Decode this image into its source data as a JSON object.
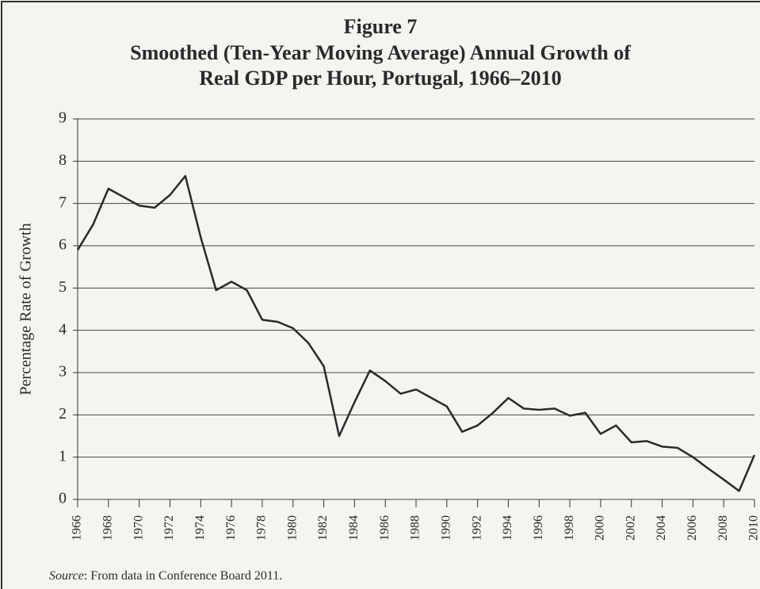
{
  "chart_data": {
    "type": "line",
    "figure_label": "Figure 7",
    "title": [
      "Smoothed (Ten-Year Moving Average) Annual Growth of",
      "Real GDP per Hour, Portugal, 1966–2010"
    ],
    "y_label": "Percentage Rate of Growth",
    "source": {
      "label": "Source",
      "text": ": From data in Conference Board 2011."
    },
    "x": [
      1966,
      1967,
      1968,
      1969,
      1970,
      1971,
      1972,
      1973,
      1974,
      1975,
      1976,
      1977,
      1978,
      1979,
      1980,
      1981,
      1982,
      1983,
      1984,
      1985,
      1986,
      1987,
      1988,
      1989,
      1990,
      1991,
      1992,
      1993,
      1994,
      1995,
      1996,
      1997,
      1998,
      1999,
      2000,
      2001,
      2002,
      2003,
      2004,
      2005,
      2006,
      2007,
      2008,
      2009,
      2010
    ],
    "series": [
      {
        "color": "#2a2a2a",
        "values": [
          5.9,
          6.5,
          7.35,
          7.15,
          6.95,
          6.9,
          7.2,
          7.65,
          6.2,
          4.95,
          5.15,
          4.95,
          4.25,
          4.2,
          4.05,
          3.7,
          3.15,
          1.5,
          2.3,
          3.05,
          2.8,
          2.5,
          2.6,
          2.4,
          2.2,
          1.6,
          1.75,
          2.05,
          2.4,
          2.15,
          2.12,
          2.15,
          1.98,
          2.05,
          1.55,
          1.75,
          1.35,
          1.38,
          1.25,
          1.22,
          1.0,
          0.73,
          0.47,
          0.2,
          1.05
        ]
      }
    ],
    "xlim": [
      1966,
      2010
    ],
    "xticks": [
      1966,
      1968,
      1970,
      1972,
      1974,
      1976,
      1978,
      1980,
      1982,
      1984,
      1986,
      1988,
      1990,
      1992,
      1994,
      1996,
      1998,
      2000,
      2002,
      2004,
      2006,
      2008,
      2010
    ],
    "ylim": [
      0,
      9
    ],
    "yticks": [
      0,
      1,
      2,
      3,
      4,
      5,
      6,
      7,
      8,
      9
    ],
    "grid": true
  }
}
